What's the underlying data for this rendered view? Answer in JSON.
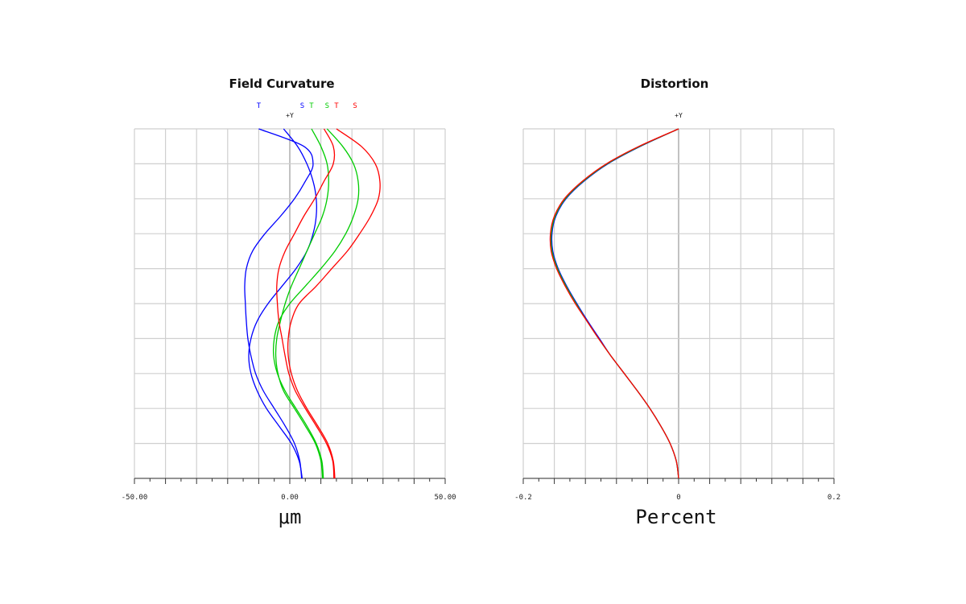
{
  "chart_data": [
    {
      "type": "line",
      "title": "Field Curvature",
      "unit_label": "μm",
      "y_axis_label": "+Y",
      "xlim": [
        -50,
        50
      ],
      "ylim": [
        0,
        1
      ],
      "x_tick_labels": [
        "-50.00",
        "0.00",
        "50.00"
      ],
      "x_tick_values": [
        -50,
        0,
        50
      ],
      "grid": true,
      "legend": [
        {
          "label": "T",
          "color": "#0000ff",
          "at_x": -10
        },
        {
          "label": "S",
          "color": "#0000ff",
          "at_x": 4
        },
        {
          "label": "T",
          "color": "#00cc00",
          "at_x": 7
        },
        {
          "label": "S",
          "color": "#00cc00",
          "at_x": 12
        },
        {
          "label": "T",
          "color": "#ff0000",
          "at_x": 15
        },
        {
          "label": "S",
          "color": "#ff0000",
          "at_x": 21
        }
      ],
      "series": [
        {
          "color": "#0000ff",
          "x": [
            3.8,
            3.2,
            1.5,
            -1.5,
            -5,
            -8.5,
            -11,
            -12.5,
            -13.5,
            -14,
            -14.3,
            -14.5,
            -14,
            -12,
            -8,
            -3,
            1.5,
            5,
            7.5,
            4.5,
            -10
          ],
          "y": [
            0,
            0.05,
            0.1,
            0.15,
            0.2,
            0.25,
            0.3,
            0.35,
            0.4,
            0.45,
            0.5,
            0.55,
            0.6,
            0.65,
            0.7,
            0.75,
            0.8,
            0.85,
            0.9,
            0.95,
            1
          ]
        },
        {
          "color": "#0000ff",
          "x": [
            4,
            3,
            0.5,
            -3.5,
            -7.5,
            -10.5,
            -12.5,
            -13.2,
            -12.5,
            -10.5,
            -7,
            -2.5,
            2,
            5.5,
            7.5,
            8.5,
            8.5,
            7.5,
            5.5,
            2.5,
            -2
          ],
          "y": [
            0,
            0.05,
            0.1,
            0.15,
            0.2,
            0.25,
            0.3,
            0.35,
            0.4,
            0.45,
            0.5,
            0.55,
            0.6,
            0.65,
            0.7,
            0.75,
            0.8,
            0.85,
            0.9,
            0.95,
            1
          ]
        },
        {
          "color": "#00cc00",
          "x": [
            10.8,
            10.3,
            8.5,
            5.5,
            2,
            -1.5,
            -4,
            -5.2,
            -5,
            -3.5,
            0,
            5,
            10,
            14.5,
            18,
            20.5,
            22,
            22,
            20.5,
            17,
            12
          ],
          "y": [
            0,
            0.05,
            0.1,
            0.15,
            0.2,
            0.25,
            0.3,
            0.35,
            0.4,
            0.45,
            0.5,
            0.55,
            0.6,
            0.65,
            0.7,
            0.75,
            0.8,
            0.85,
            0.9,
            0.95,
            1
          ]
        },
        {
          "color": "#00cc00",
          "x": [
            10.5,
            10,
            8.2,
            5,
            1.5,
            -2,
            -3.8,
            -4.5,
            -4.2,
            -3,
            -1.5,
            0.5,
            3,
            5.5,
            8,
            10.5,
            12,
            12.5,
            12,
            10,
            7
          ],
          "y": [
            0,
            0.05,
            0.1,
            0.15,
            0.2,
            0.25,
            0.3,
            0.35,
            0.4,
            0.45,
            0.5,
            0.55,
            0.6,
            0.65,
            0.7,
            0.75,
            0.8,
            0.85,
            0.9,
            0.95,
            1
          ]
        },
        {
          "color": "#ff0000",
          "x": [
            14.5,
            14,
            12.2,
            9,
            5.5,
            2.5,
            0.5,
            -0.5,
            -0.5,
            0.5,
            3,
            8.5,
            13.5,
            18.5,
            22.5,
            26,
            28.5,
            29,
            27.5,
            23,
            15
          ],
          "y": [
            0,
            0.05,
            0.1,
            0.15,
            0.2,
            0.25,
            0.3,
            0.35,
            0.4,
            0.45,
            0.5,
            0.55,
            0.6,
            0.65,
            0.7,
            0.75,
            0.8,
            0.85,
            0.9,
            0.95,
            1
          ]
        },
        {
          "color": "#ff0000",
          "x": [
            14.2,
            13.8,
            11.8,
            8.5,
            5,
            1.8,
            -0.3,
            -1.5,
            -2.5,
            -3.5,
            -4,
            -4.2,
            -3.5,
            -1.5,
            1.5,
            4.5,
            8,
            11,
            14,
            14,
            11
          ],
          "y": [
            0,
            0.05,
            0.1,
            0.15,
            0.2,
            0.25,
            0.3,
            0.35,
            0.4,
            0.45,
            0.5,
            0.55,
            0.6,
            0.65,
            0.7,
            0.75,
            0.8,
            0.85,
            0.9,
            0.95,
            1
          ]
        }
      ]
    },
    {
      "type": "line",
      "title": "Distortion",
      "unit_label": "Percent",
      "y_axis_label": "+Y",
      "xlim": [
        -0.2,
        0.2
      ],
      "ylim": [
        0,
        1
      ],
      "x_tick_labels": [
        "-0.2",
        "0",
        "0.2"
      ],
      "x_tick_values": [
        -0.2,
        0,
        0.2
      ],
      "grid": true,
      "series": [
        {
          "color": "#0000ff",
          "x": [
            0,
            -0.003,
            -0.011,
            -0.023,
            -0.037,
            -0.053,
            -0.07,
            -0.087,
            -0.102,
            -0.117,
            -0.131,
            -0.144,
            -0.155,
            -0.162,
            -0.163,
            -0.158,
            -0.145,
            -0.122,
            -0.091,
            -0.049,
            0
          ],
          "y": [
            0,
            0.05,
            0.1,
            0.15,
            0.2,
            0.25,
            0.3,
            0.35,
            0.4,
            0.45,
            0.5,
            0.55,
            0.6,
            0.65,
            0.7,
            0.75,
            0.8,
            0.85,
            0.9,
            0.95,
            1
          ]
        },
        {
          "color": "#00cc00",
          "x": [
            0,
            -0.003,
            -0.011,
            -0.023,
            -0.037,
            -0.053,
            -0.07,
            -0.087,
            -0.103,
            -0.118,
            -0.132,
            -0.145,
            -0.156,
            -0.163,
            -0.164,
            -0.159,
            -0.146,
            -0.123,
            -0.092,
            -0.05,
            0
          ],
          "y": [
            0,
            0.05,
            0.1,
            0.15,
            0.2,
            0.25,
            0.3,
            0.35,
            0.4,
            0.45,
            0.5,
            0.55,
            0.6,
            0.65,
            0.7,
            0.75,
            0.8,
            0.85,
            0.9,
            0.95,
            1
          ]
        },
        {
          "color": "#ff0000",
          "x": [
            0,
            -0.003,
            -0.011,
            -0.023,
            -0.037,
            -0.053,
            -0.07,
            -0.087,
            -0.103,
            -0.118,
            -0.133,
            -0.146,
            -0.157,
            -0.164,
            -0.165,
            -0.16,
            -0.147,
            -0.124,
            -0.093,
            -0.051,
            0
          ],
          "y": [
            0,
            0.05,
            0.1,
            0.15,
            0.2,
            0.25,
            0.3,
            0.35,
            0.4,
            0.45,
            0.5,
            0.55,
            0.6,
            0.65,
            0.7,
            0.75,
            0.8,
            0.85,
            0.9,
            0.95,
            1
          ]
        }
      ]
    }
  ]
}
